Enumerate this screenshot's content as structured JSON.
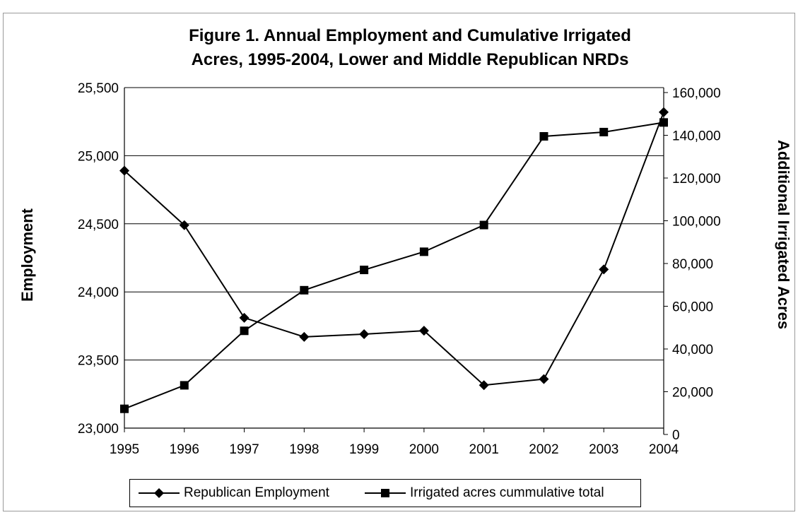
{
  "title_lines": [
    "Figure 1. Annual Employment and Cumulative Irrigated",
    "Acres, 1995-2004, Lower and Middle Republican NRDs"
  ],
  "chart_data": {
    "type": "line",
    "title": "Figure 1. Annual Employment and Cumulative Irrigated Acres, 1995-2004, Lower and Middle Republican NRDs",
    "x": [
      "1995",
      "1996",
      "1997",
      "1998",
      "1999",
      "2000",
      "2001",
      "2002",
      "2003",
      "2004"
    ],
    "xlabel": "",
    "ylabel_left": "Employment",
    "ylabel_right": "Additional Irrigated Acres",
    "y_left_lim": [
      23000,
      25500
    ],
    "y_right_lim": [
      0,
      160000
    ],
    "y_left_ticks": [
      "25,500",
      "25,000",
      "24,500",
      "24,000",
      "23,500",
      "23,000"
    ],
    "y_right_ticks": [
      "160,000",
      "140,000",
      "120,000",
      "100,000",
      "80,000",
      "60,000",
      "40,000",
      "20,000",
      "0"
    ],
    "grid": true,
    "legend_position": "bottom",
    "series": [
      {
        "name": "Republican Employment",
        "axis": "left",
        "marker": "diamond",
        "values": [
          24890,
          24490,
          23810,
          23670,
          23690,
          23715,
          23315,
          23360,
          24165,
          25320
        ]
      },
      {
        "name": "Irrigated acres cummulative total",
        "axis": "right",
        "marker": "square",
        "values": [
          12000,
          23000,
          48500,
          67500,
          77000,
          85500,
          98000,
          139500,
          141500,
          146000
        ]
      }
    ],
    "colors": {
      "line": "#000000",
      "grid": "#000000",
      "background": "#ffffff"
    }
  }
}
